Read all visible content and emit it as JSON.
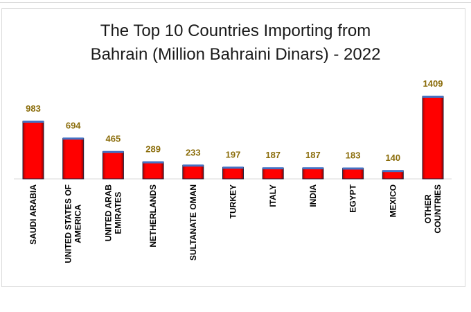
{
  "chart_data": {
    "type": "bar",
    "title_lines": [
      "The Top 10 Countries Importing from",
      "Bahrain (Million Bahraini Dinars) - 2022"
    ],
    "categories": [
      [
        "SAUDI ARABIA"
      ],
      [
        "UNITED STATES OF",
        "AMERICA"
      ],
      [
        "UNITED ARAB",
        "EMIRATES"
      ],
      [
        "NETHERLANDS"
      ],
      [
        "SULTANATE OMAN"
      ],
      [
        "TURKEY"
      ],
      [
        "ITALY"
      ],
      [
        "INDIA"
      ],
      [
        "EGYPT"
      ],
      [
        "MEXICO"
      ],
      [
        "OTHER",
        "COUNTRIES"
      ]
    ],
    "values": [
      983,
      694,
      465,
      289,
      233,
      197,
      187,
      187,
      183,
      140,
      1409
    ],
    "data_labels": [
      "983",
      "694",
      "465",
      "289",
      "233",
      "197",
      "187",
      "187",
      "183",
      "140",
      "1409"
    ],
    "xlabel": "",
    "ylabel": "",
    "ylim": [
      0,
      1500
    ],
    "grid": false,
    "legend": "none",
    "colors": {
      "bar": "#ff0000",
      "bar_top": "#4472c4",
      "data_label": "#8b6d0b",
      "axis": "#d9d9d9"
    }
  }
}
